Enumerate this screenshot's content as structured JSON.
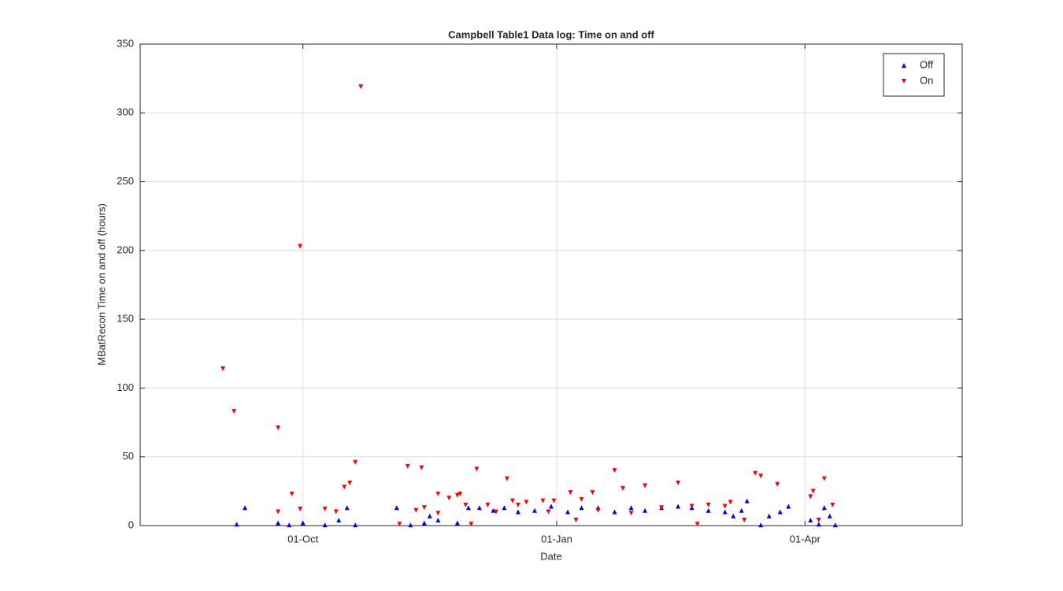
{
  "chart_data": {
    "type": "scatter",
    "title": "Campbell Table1 Data log: Time on and off",
    "xlabel": "Date",
    "ylabel": "MBatRecon Time on and off (hours)",
    "xlim": [
      -59,
      239
    ],
    "xticks": [
      {
        "value": 0,
        "label": "01-Oct"
      },
      {
        "value": 92,
        "label": "01-Jan"
      },
      {
        "value": 182,
        "label": "01-Apr"
      }
    ],
    "ylim": [
      0,
      350
    ],
    "yticks": [
      0,
      50,
      100,
      150,
      200,
      250,
      300,
      350
    ],
    "grid": true,
    "legend": "upper right",
    "series": [
      {
        "name": "Off",
        "color": "#0000ff",
        "marker": "triangle-up",
        "x": [
          -24,
          -21,
          -9,
          -5,
          0,
          8,
          13,
          16,
          19,
          34,
          39,
          44,
          46,
          49,
          56,
          60,
          64,
          69,
          73,
          78,
          84,
          90,
          96,
          101,
          107,
          113,
          119,
          124,
          130,
          136,
          141,
          147,
          153,
          156,
          159,
          161,
          166,
          169,
          173,
          176,
          184,
          187,
          189,
          191,
          193
        ],
        "values": [
          1,
          13,
          2,
          0.5,
          2,
          0.5,
          4,
          13,
          0.5,
          13,
          0.5,
          2,
          7,
          4,
          2,
          13,
          13,
          11,
          13,
          10,
          11,
          14,
          10,
          13,
          13,
          10,
          13,
          11,
          13,
          14,
          13,
          11,
          10,
          7,
          11,
          18,
          0.5,
          7,
          10,
          14,
          4,
          1,
          13,
          7,
          0.5
        ]
      },
      {
        "name": "On",
        "color": "#ff0000",
        "marker": "triangle-down",
        "x": [
          -29,
          -25,
          -9,
          -9,
          -4,
          -1,
          -1,
          8,
          12,
          15,
          17,
          19,
          21,
          35,
          38,
          41,
          43,
          44,
          49,
          49,
          53,
          56,
          57,
          59,
          61,
          63,
          67,
          70,
          74,
          76,
          78,
          81,
          87,
          89,
          91,
          97,
          99,
          101,
          105,
          107,
          113,
          116,
          119,
          124,
          130,
          136,
          141,
          143,
          147,
          153,
          155,
          160,
          164,
          166,
          172,
          184,
          185,
          187,
          189,
          192
        ],
        "values": [
          114,
          83,
          71,
          10,
          23,
          203,
          12,
          12,
          10,
          28,
          31,
          46,
          319,
          1,
          43,
          11,
          42,
          13,
          23,
          9,
          20,
          22,
          23,
          15,
          1,
          41,
          15,
          10,
          34,
          18,
          15,
          17,
          18,
          10,
          18,
          24,
          4,
          19,
          24,
          11,
          40,
          27,
          9,
          29,
          13,
          31,
          14,
          1,
          15,
          14,
          17,
          4,
          38,
          36,
          30,
          21,
          25,
          4,
          34,
          15
        ]
      }
    ]
  }
}
